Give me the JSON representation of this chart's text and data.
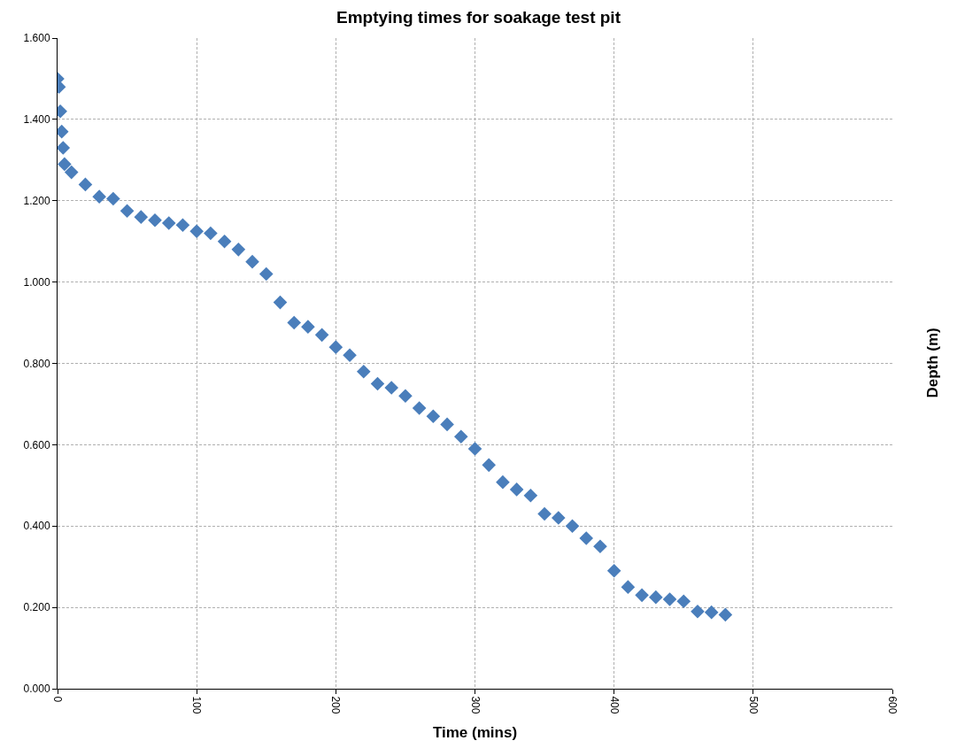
{
  "chart_data": {
    "type": "scatter",
    "title": "Emptying times for soakage test pit",
    "xlabel": "Time (mins)",
    "ylabel": "Depth (m)",
    "x": [
      0,
      1,
      2,
      3,
      4,
      5,
      10,
      20,
      30,
      40,
      50,
      60,
      70,
      80,
      90,
      100,
      110,
      120,
      130,
      140,
      150,
      160,
      170,
      180,
      190,
      200,
      210,
      220,
      230,
      240,
      250,
      260,
      270,
      280,
      290,
      300,
      310,
      320,
      330,
      340,
      350,
      360,
      370,
      380,
      390,
      400,
      410,
      420,
      430,
      440,
      450,
      460,
      470,
      480
    ],
    "series": [
      {
        "color": "#4a7ebb",
        "values": [
          1.5,
          1.48,
          1.42,
          1.37,
          1.33,
          1.29,
          1.27,
          1.24,
          1.21,
          1.205,
          1.175,
          1.16,
          1.152,
          1.145,
          1.14,
          1.125,
          1.12,
          1.1,
          1.08,
          1.05,
          1.02,
          0.95,
          0.9,
          0.89,
          0.87,
          0.84,
          0.82,
          0.78,
          0.75,
          0.74,
          0.72,
          0.69,
          0.67,
          0.65,
          0.62,
          0.59,
          0.55,
          0.508,
          0.49,
          0.475,
          0.43,
          0.42,
          0.4,
          0.37,
          0.35,
          0.29,
          0.25,
          0.23,
          0.225,
          0.22,
          0.215,
          0.19,
          0.188,
          0.182
        ]
      }
    ],
    "xlim": [
      0,
      600
    ],
    "xticks": [
      0,
      100,
      200,
      300,
      400,
      500,
      600
    ],
    "ylim": [
      0,
      1.6
    ],
    "yticks": [
      {
        "value": 0,
        "label": "0.000"
      },
      {
        "value": 0.2,
        "label": "0.200"
      },
      {
        "value": 0.4,
        "label": "0.400"
      },
      {
        "value": 0.6,
        "label": "0.600"
      },
      {
        "value": 0.8,
        "label": "0.800"
      },
      {
        "value": 1.0,
        "label": "1.000"
      },
      {
        "value": 1.2,
        "label": "1.200"
      },
      {
        "value": 1.4,
        "label": "1.400"
      },
      {
        "value": 1.6,
        "label": "1.600"
      }
    ],
    "grid": true,
    "marker": "diamond"
  }
}
